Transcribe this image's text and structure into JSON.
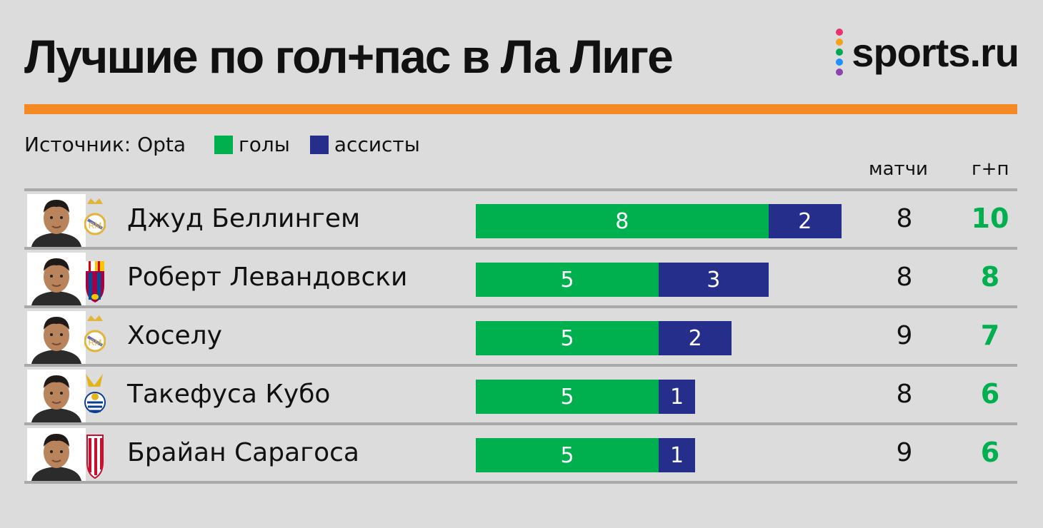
{
  "title": "Лучшие по гол+пас в Ла Лиге",
  "logo": {
    "text": "sports.ru",
    "dot_colors": [
      "#e8336e",
      "#f4a21d",
      "#00a651",
      "#1e90ff",
      "#8e44ad"
    ]
  },
  "source": "Источник: Opta",
  "colors": {
    "goals": "#00b04f",
    "assists": "#262e8c",
    "accent": "#f58a24",
    "total_text": "#00b04f",
    "background": "#dcdcdc"
  },
  "columns": {
    "matches": "матчи",
    "total": "г+п"
  },
  "chart_data": {
    "type": "bar",
    "stacked": true,
    "orientation": "horizontal",
    "title": "Лучшие по гол+пас в Ла Лиге",
    "categories": [
      "Джуд Беллингем",
      "Роберт Левандовски",
      "Хоселу",
      "Такефуса Кубо",
      "Брайан Сарагоса"
    ],
    "series": [
      {
        "name": "голы",
        "values": [
          8,
          5,
          5,
          5,
          5
        ]
      },
      {
        "name": "ассисты",
        "values": [
          2,
          3,
          2,
          1,
          1
        ]
      }
    ],
    "matches": [
      8,
      8,
      9,
      8,
      9
    ],
    "totals": [
      10,
      8,
      7,
      6,
      6
    ],
    "legend": "top-left",
    "grid": false
  },
  "players": [
    {
      "club_icon": "real-madrid-crest-icon"
    },
    {
      "club_icon": "barcelona-crest-icon"
    },
    {
      "club_icon": "real-madrid-crest-icon"
    },
    {
      "club_icon": "real-sociedad-crest-icon"
    },
    {
      "club_icon": "granada-crest-icon"
    }
  ]
}
